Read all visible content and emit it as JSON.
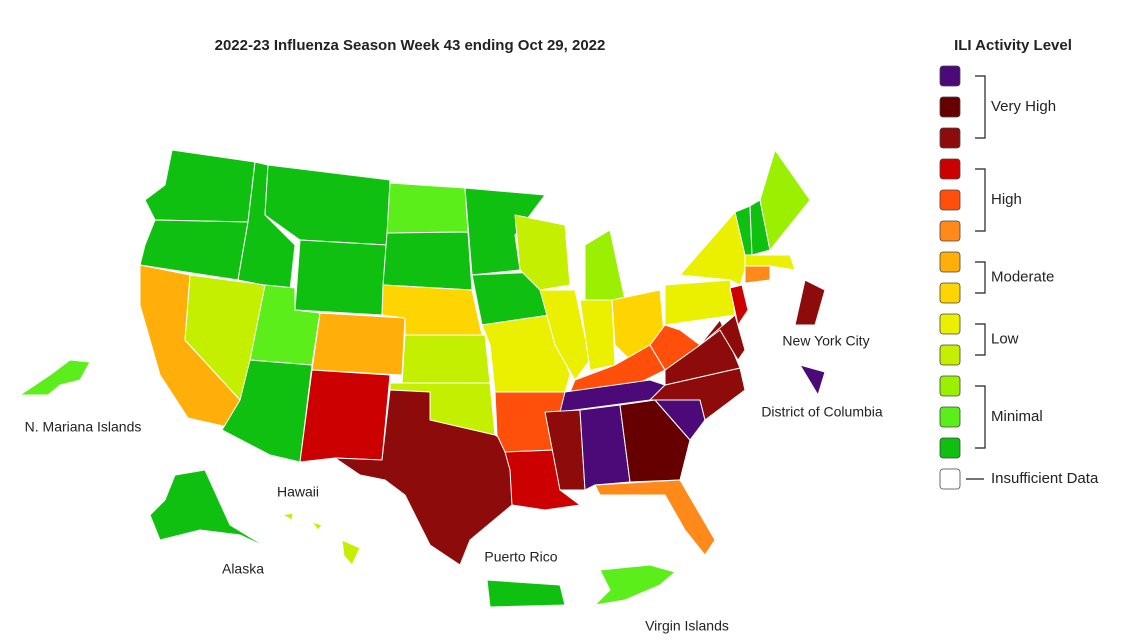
{
  "title": "2022-23 Influenza Season Week 43 ending Oct 29, 2022",
  "legend": {
    "title": "ILI Activity Level",
    "groups": [
      {
        "label": "Very High",
        "colors": [
          "#4b0a78",
          "#660000",
          "#8e0b0b"
        ]
      },
      {
        "label": "High",
        "colors": [
          "#cc0000",
          "#ff4f0a",
          "#ff8a1a"
        ]
      },
      {
        "label": "Moderate",
        "colors": [
          "#ffae0a",
          "#ffd500"
        ]
      },
      {
        "label": "Low",
        "colors": [
          "#ebf000",
          "#c4f000"
        ]
      },
      {
        "label": "Minimal",
        "colors": [
          "#9af000",
          "#5cee1a",
          "#10c010"
        ]
      }
    ],
    "insufficient": {
      "label": "Insufficient Data",
      "color": "#ffffff"
    }
  },
  "place_labels": [
    "New York City",
    "District of Columbia",
    "N. Mariana Islands",
    "Hawaii",
    "Alaska",
    "Puerto Rico",
    "Virgin Islands"
  ],
  "region_colors": [
    "#10c010",
    "#10c010",
    "#ffae0a",
    "#c4f000",
    "#10c010",
    "#10c010",
    "#10c010",
    "#5cee1a",
    "#ffae0a",
    "#10c010",
    "#cc0000",
    "#5cee1a",
    "#10c010",
    "#ffd500",
    "#c4f000",
    "#c4f000",
    "#8e0b0b",
    "#10c010",
    "#10c010",
    "#ebf000",
    "#ff4f0a",
    "#cc0000",
    "#c4f000",
    "#ebf000",
    "#9af000",
    "#ebf000",
    "#ffd500",
    "#ff4f0a",
    "#4b0a78",
    "#8e0b0b",
    "#4b0a78",
    "#660000",
    "#ff8a1a",
    "#4b0a78",
    "#8e0b0b",
    "#8e0b0b",
    "#ff4f0a",
    "#ebf000",
    "#ebf000",
    "#8e0b0b",
    "#cc0000",
    "#10c010",
    "#10c010",
    "#9af000",
    "#ebf000",
    "#ff8a1a",
    "#8e0b0b",
    "#4b0a78",
    "#10c010",
    "#c4f000",
    "#c4f000",
    "#c4f000",
    "#10c010",
    "#5cee1a",
    "#5cee1a"
  ]
}
